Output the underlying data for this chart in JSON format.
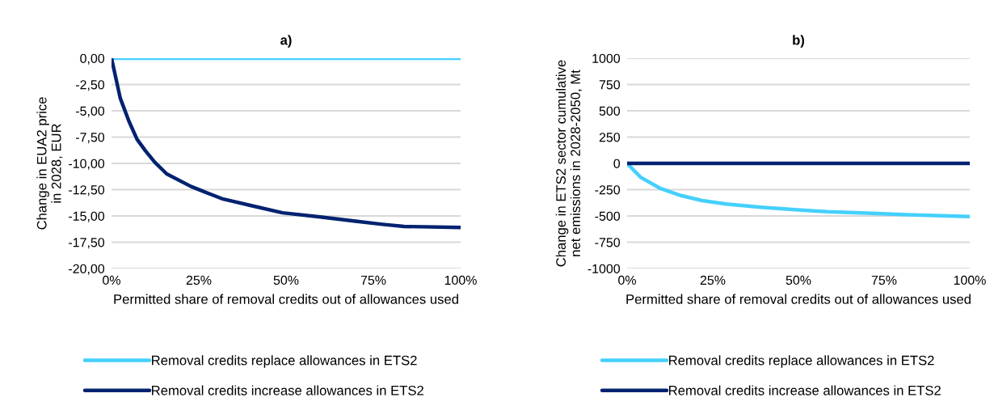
{
  "chart_data": [
    {
      "type": "line",
      "title": "a)",
      "xlabel": "Permitted share of removal credits out of allowances used",
      "ylabel": "Change in EUA2 price\nin 2028, EUR",
      "xlim": [
        0,
        100
      ],
      "xticks": [
        {
          "value": 0,
          "label": "0%"
        },
        {
          "value": 25,
          "label": "25%"
        },
        {
          "value": 50,
          "label": "50%"
        },
        {
          "value": 75,
          "label": "75%"
        },
        {
          "value": 100,
          "label": "100%"
        }
      ],
      "ylim": [
        -20,
        0
      ],
      "yticks": [
        {
          "value": 0,
          "label": "0,00"
        },
        {
          "value": -2.5,
          "label": "-2,50"
        },
        {
          "value": -5,
          "label": "-5,00"
        },
        {
          "value": -7.5,
          "label": "-7,50"
        },
        {
          "value": -10,
          "label": "-10,00"
        },
        {
          "value": -12.5,
          "label": "-12,50"
        },
        {
          "value": -15,
          "label": "-15,00"
        },
        {
          "value": -17.5,
          "label": "-17,50"
        },
        {
          "value": -20,
          "label": "-20,00"
        }
      ],
      "grid": "y",
      "legend": "bottom",
      "series": [
        {
          "name": "Removal credits replace allowances in ETS2",
          "color": "#45d0fc",
          "x": [
            0,
            100
          ],
          "values": [
            0,
            0
          ]
        },
        {
          "name": "Removal credits increase allowances in ETS2",
          "color": "#002270",
          "x": [
            0,
            2.5,
            5,
            7.3,
            9.7,
            12.4,
            15.8,
            22.8,
            26.6,
            32,
            39.8,
            49,
            59.8,
            69.9,
            77.6,
            83.8,
            100
          ],
          "values": [
            0,
            -3.8,
            -6.0,
            -7.7,
            -8.8,
            -9.9,
            -11.0,
            -12.2,
            -12.7,
            -13.4,
            -14.0,
            -14.7,
            -15.1,
            -15.5,
            -15.8,
            -16.0,
            -16.1
          ]
        }
      ]
    },
    {
      "type": "line",
      "title": "b)",
      "xlabel": "Permitted share of removal credits out of allowances used",
      "ylabel": "Change in ETS2 sector cumulative\nnet emissions in 2028-2050, Mt",
      "xlim": [
        0,
        100
      ],
      "xticks": [
        {
          "value": 0,
          "label": "0%"
        },
        {
          "value": 25,
          "label": "25%"
        },
        {
          "value": 50,
          "label": "50%"
        },
        {
          "value": 75,
          "label": "75%"
        },
        {
          "value": 100,
          "label": "100%"
        }
      ],
      "ylim": [
        -1000,
        1000
      ],
      "yticks": [
        -1000,
        -750,
        -500,
        -250,
        0,
        250,
        500,
        750,
        1000
      ],
      "grid": "y",
      "legend": "bottom",
      "series": [
        {
          "name": "Removal credits replace allowances in ETS2",
          "color": "#45d0fc",
          "x": [
            0,
            4,
            9.5,
            15.7,
            21.9,
            28.9,
            39,
            49.1,
            58.4,
            70,
            81.7,
            100
          ],
          "values": [
            0,
            -134,
            -235,
            -306,
            -354,
            -387,
            -417,
            -440,
            -460,
            -473,
            -488,
            -506
          ]
        },
        {
          "name": "Removal credits increase allowances in ETS2",
          "color": "#002270",
          "x": [
            0,
            100
          ],
          "values": [
            0,
            0
          ]
        }
      ]
    }
  ]
}
